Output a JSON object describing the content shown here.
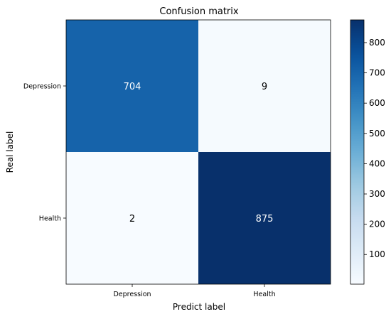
{
  "chart_data": {
    "type": "heatmap",
    "title": "Confusion matrix",
    "xlabel": "Predict label",
    "ylabel": "Real label",
    "x_categories": [
      "Depression",
      "Health"
    ],
    "y_categories": [
      "Depression",
      "Health"
    ],
    "values": [
      [
        704,
        9
      ],
      [
        2,
        875
      ]
    ],
    "colormap": "Blues",
    "colorbar": {
      "min": 2,
      "max": 875,
      "ticks": [
        100,
        200,
        300,
        400,
        500,
        600,
        700,
        800
      ]
    },
    "colors": {
      "low": "#f7fbff",
      "high": "#08306b",
      "text_on_dark": "#ffffff",
      "text_on_light": "#000000"
    }
  }
}
